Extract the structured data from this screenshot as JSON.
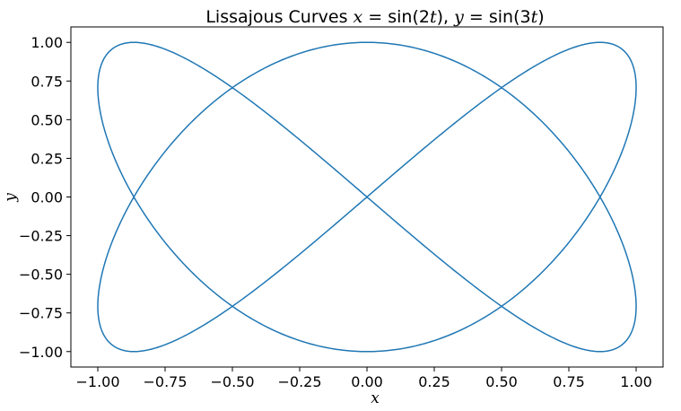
{
  "chart_data": {
    "type": "line",
    "title": "Lissajous Curves x = sin(2t), y = sin(3t)",
    "title_parts": {
      "prefix": "Lissajous Curves ",
      "x_var": "x",
      "eq1": " = sin(2",
      "t1": "t",
      "mid": "), ",
      "y_var": "y",
      "eq2": " = sin(3",
      "t2": "t",
      "suffix": ")"
    },
    "xlabel": "x",
    "ylabel": "y",
    "xlim": [
      -1.1,
      1.1
    ],
    "ylim": [
      -1.1,
      1.1
    ],
    "xticks": [
      -1.0,
      -0.75,
      -0.5,
      -0.25,
      0.0,
      0.25,
      0.5,
      0.75,
      1.0
    ],
    "xtick_labels": [
      "−1.00",
      "−0.75",
      "−0.50",
      "−0.25",
      "0.00",
      "0.25",
      "0.50",
      "0.75",
      "1.00"
    ],
    "yticks": [
      1.0,
      0.75,
      0.5,
      0.25,
      0.0,
      -0.25,
      -0.5,
      -0.75,
      -1.0
    ],
    "ytick_labels": [
      "1.00",
      "0.75",
      "0.50",
      "0.25",
      "0.00",
      "−0.25",
      "−0.50",
      "−0.75",
      "−1.00"
    ],
    "grid": false,
    "legend": false,
    "series": [
      {
        "x_function": "sin(2t)",
        "y_function": "sin(3t)",
        "t_range": [
          0,
          6.283185307
        ],
        "color": "#1f77b4"
      }
    ]
  }
}
